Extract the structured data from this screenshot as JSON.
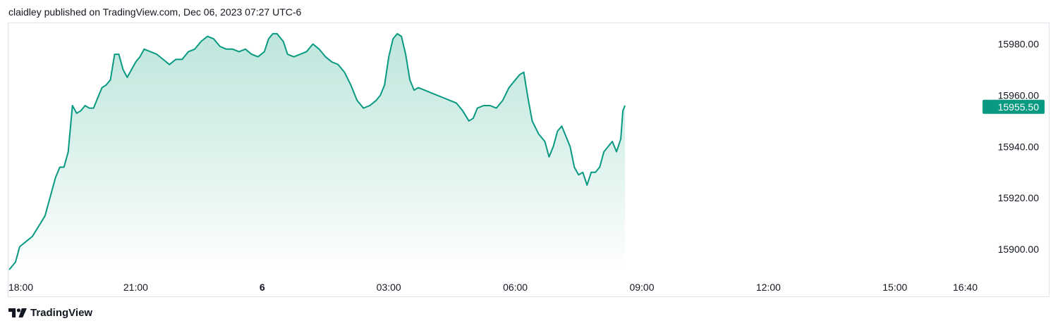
{
  "header": {
    "published_text": "claidley published on TradingView.com, Dec 06, 2023 07:27 UTC-6"
  },
  "footer": {
    "brand": "TradingView",
    "logo_icon": "tradingview-logo-icon"
  },
  "colors": {
    "line": "#089981",
    "fill_top": "#b7e3d8",
    "price_badge": "#089981",
    "border": "#e0e3eb"
  },
  "chart_data": {
    "type": "area",
    "x_tick_labels": [
      {
        "label": "18:00",
        "h": 0
      },
      {
        "label": "21:00",
        "h": 3
      },
      {
        "label": "6",
        "h": 6,
        "bold": true
      },
      {
        "label": "03:00",
        "h": 9
      },
      {
        "label": "06:00",
        "h": 12
      },
      {
        "label": "09:00",
        "h": 15
      },
      {
        "label": "12:00",
        "h": 18
      },
      {
        "label": "15:00",
        "h": 21
      },
      {
        "label": "16:40",
        "h": 22.667
      }
    ],
    "y_tick_labels": [
      "15980.00",
      "15960.00",
      "15940.00",
      "15920.00",
      "15900.00"
    ],
    "y_ticks": [
      15980,
      15960,
      15940,
      15920,
      15900
    ],
    "ylim": [
      15888,
      15994
    ],
    "last_price": 15955.5,
    "last_price_label": "15955.50",
    "series": [
      {
        "points": [
          [
            0.0,
            15892
          ],
          [
            0.15,
            15895
          ],
          [
            0.25,
            15901
          ],
          [
            0.4,
            15903
          ],
          [
            0.55,
            15905
          ],
          [
            0.7,
            15909
          ],
          [
            0.85,
            15913
          ],
          [
            1.0,
            15922
          ],
          [
            1.1,
            15928
          ],
          [
            1.2,
            15932
          ],
          [
            1.3,
            15932
          ],
          [
            1.4,
            15938
          ],
          [
            1.5,
            15956
          ],
          [
            1.6,
            15953
          ],
          [
            1.7,
            15954
          ],
          [
            1.8,
            15956
          ],
          [
            1.9,
            15955
          ],
          [
            2.0,
            15955
          ],
          [
            2.1,
            15959
          ],
          [
            2.2,
            15963
          ],
          [
            2.3,
            15964
          ],
          [
            2.4,
            15966
          ],
          [
            2.5,
            15976
          ],
          [
            2.6,
            15976
          ],
          [
            2.7,
            15970
          ],
          [
            2.8,
            15967
          ],
          [
            2.9,
            15970
          ],
          [
            3.0,
            15973
          ],
          [
            3.1,
            15975
          ],
          [
            3.2,
            15978
          ],
          [
            3.35,
            15977
          ],
          [
            3.5,
            15976
          ],
          [
            3.65,
            15974
          ],
          [
            3.8,
            15972
          ],
          [
            3.95,
            15974
          ],
          [
            4.1,
            15974
          ],
          [
            4.25,
            15977
          ],
          [
            4.4,
            15978
          ],
          [
            4.55,
            15981
          ],
          [
            4.7,
            15983
          ],
          [
            4.85,
            15982
          ],
          [
            5.0,
            15979
          ],
          [
            5.15,
            15978
          ],
          [
            5.3,
            15978
          ],
          [
            5.45,
            15977
          ],
          [
            5.6,
            15978
          ],
          [
            5.75,
            15976
          ],
          [
            5.9,
            15975
          ],
          [
            6.05,
            15977
          ],
          [
            6.15,
            15982
          ],
          [
            6.25,
            15984
          ],
          [
            6.35,
            15984
          ],
          [
            6.5,
            15981
          ],
          [
            6.6,
            15976
          ],
          [
            6.75,
            15975
          ],
          [
            6.9,
            15976
          ],
          [
            7.05,
            15977
          ],
          [
            7.2,
            15980
          ],
          [
            7.35,
            15978
          ],
          [
            7.5,
            15975
          ],
          [
            7.65,
            15973
          ],
          [
            7.8,
            15972
          ],
          [
            7.95,
            15969
          ],
          [
            8.1,
            15964
          ],
          [
            8.25,
            15958
          ],
          [
            8.4,
            15955
          ],
          [
            8.55,
            15956
          ],
          [
            8.7,
            15958
          ],
          [
            8.8,
            15960
          ],
          [
            8.9,
            15964
          ],
          [
            9.0,
            15975
          ],
          [
            9.1,
            15982
          ],
          [
            9.2,
            15984
          ],
          [
            9.3,
            15983
          ],
          [
            9.4,
            15976
          ],
          [
            9.5,
            15966
          ],
          [
            9.6,
            15962
          ],
          [
            9.7,
            15963
          ],
          [
            9.85,
            15962
          ],
          [
            10.0,
            15961
          ],
          [
            10.15,
            15960
          ],
          [
            10.3,
            15959
          ],
          [
            10.45,
            15958
          ],
          [
            10.6,
            15957
          ],
          [
            10.75,
            15954
          ],
          [
            10.9,
            15950
          ],
          [
            11.0,
            15951
          ],
          [
            11.1,
            15955
          ],
          [
            11.25,
            15956
          ],
          [
            11.4,
            15956
          ],
          [
            11.55,
            15955
          ],
          [
            11.7,
            15958
          ],
          [
            11.85,
            15963
          ],
          [
            12.0,
            15966
          ],
          [
            12.1,
            15968
          ],
          [
            12.2,
            15969
          ],
          [
            12.3,
            15959
          ],
          [
            12.4,
            15950
          ],
          [
            12.55,
            15945
          ],
          [
            12.7,
            15942
          ],
          [
            12.8,
            15936
          ],
          [
            12.9,
            15940
          ],
          [
            13.0,
            15946
          ],
          [
            13.1,
            15948
          ],
          [
            13.2,
            15944
          ],
          [
            13.3,
            15940
          ],
          [
            13.4,
            15932
          ],
          [
            13.5,
            15929
          ],
          [
            13.6,
            15930
          ],
          [
            13.7,
            15925
          ],
          [
            13.8,
            15930
          ],
          [
            13.9,
            15930
          ],
          [
            14.0,
            15932
          ],
          [
            14.1,
            15938
          ],
          [
            14.2,
            15940
          ],
          [
            14.3,
            15942
          ],
          [
            14.4,
            15938
          ],
          [
            14.5,
            15943
          ],
          [
            14.55,
            15954
          ],
          [
            14.6,
            15956
          ]
        ]
      }
    ]
  }
}
